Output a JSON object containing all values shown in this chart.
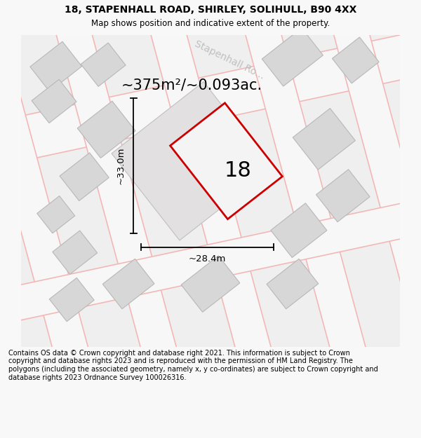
{
  "title_line1": "18, STAPENHALL ROAD, SHIRLEY, SOLIHULL, B90 4XX",
  "title_line2": "Map shows position and indicative extent of the property.",
  "area_text": "~375m²/~0.093ac.",
  "number_label": "18",
  "dim_width": "~28.4m",
  "dim_height": "~33.0m",
  "footer_text": "Contains OS data © Crown copyright and database right 2021. This information is subject to Crown copyright and database rights 2023 and is reproduced with the permission of HM Land Registry. The polygons (including the associated geometry, namely x, y co-ordinates) are subject to Crown copyright and database rights 2023 Ordnance Survey 100026316.",
  "map_bg": "#f0efef",
  "plot_line_color": "#cc0000",
  "plot_fill_color": "#f5f4f4",
  "street_text_color": "#c0c0c0",
  "building_fill": "#d8d7d7",
  "building_outline": "#b8b8b8",
  "pink_road_color": "#f2b8b8",
  "road_fill": "#f8f7f7",
  "fig_width": 6.0,
  "fig_height": 6.25,
  "ang": 38
}
